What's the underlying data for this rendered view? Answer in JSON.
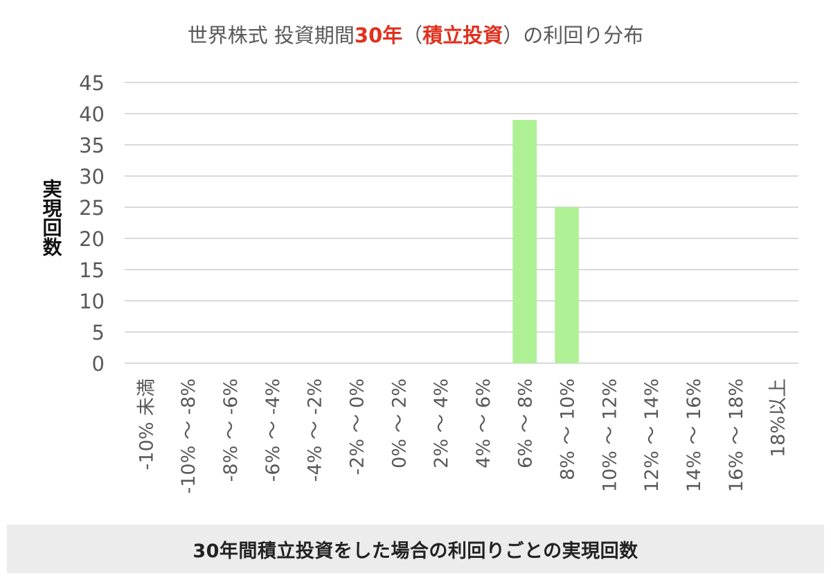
{
  "colors": {
    "bar": "#aef194",
    "grid": "#d9d9d9",
    "axis_text": "#595959",
    "title_text": "#595959",
    "title_accent": "#e0311f",
    "ylabel_text": "#111111",
    "caption_bg": "#ececec",
    "caption_text": "#222222"
  },
  "caption": "30年間積立投資をした場合の利回りごとの実現回数",
  "chart_data": {
    "type": "bar",
    "title_parts": [
      {
        "text": "世界株式 投資期間",
        "accent": false
      },
      {
        "text": "30年",
        "accent": true
      },
      {
        "text": "（",
        "accent": false
      },
      {
        "text": "積立投資",
        "accent": true
      },
      {
        "text": "）の利回り分布",
        "accent": false
      }
    ],
    "ylabel": "実現回数",
    "xlabel": "",
    "categories": [
      "-10% 未満",
      "-10% ～ -8%",
      "-8% ～ -6%",
      "-6% ～ -4%",
      "-4% ～ -2%",
      "-2% ～ 0%",
      "0% ～ 2%",
      "2% ～ 4%",
      "4% ～ 6%",
      "6% ～ 8%",
      "8% ～ 10%",
      "10% ～ 12%",
      "12% ～ 14%",
      "14% ～ 16%",
      "16% ～ 18%",
      "18%以上"
    ],
    "values": [
      0,
      0,
      0,
      0,
      0,
      0,
      0,
      0,
      0,
      39,
      25,
      0,
      0,
      0,
      0,
      0
    ],
    "ylim": [
      0,
      45
    ],
    "yticks": [
      "0",
      "5",
      "10",
      "15",
      "20",
      "25",
      "30",
      "35",
      "40",
      "45"
    ],
    "grid": true,
    "legend": "none"
  }
}
